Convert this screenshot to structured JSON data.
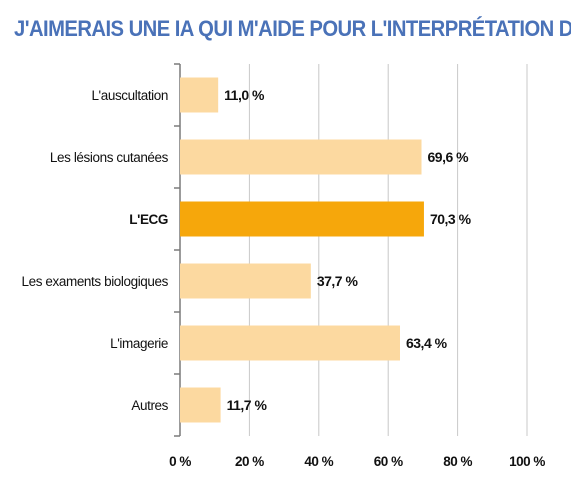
{
  "chart_data": {
    "type": "bar",
    "orientation": "horizontal",
    "title": "J'AIMERAIS UNE IA QUI M'AIDE POUR L'INTERPRÉTATION DE :",
    "categories": [
      "L'auscultation",
      "Les lésions cutanées",
      "L'ECG",
      "Les examents biologiques",
      "L'imagerie",
      "Autres"
    ],
    "values": [
      11.0,
      69.6,
      70.3,
      37.7,
      63.4,
      11.7
    ],
    "value_labels": [
      "11,0 %",
      "69,6 %",
      "70,3 %",
      "37,7 %",
      "63,4 %",
      "11,7 %"
    ],
    "highlighted_category": "L'ECG",
    "xlim": [
      0,
      100
    ],
    "x_ticks": [
      0,
      20,
      40,
      60,
      80,
      100
    ],
    "x_tick_labels": [
      "0 %",
      "20 %",
      "40 %",
      "60 %",
      "80 %",
      "100 %"
    ],
    "grid": "vertical",
    "colors": {
      "bar": "#fcd9a0",
      "highlight": "#f6a70b",
      "title": "#4a72b8",
      "axis": "#7a7a7a",
      "grid": "#c8c8c8"
    }
  }
}
